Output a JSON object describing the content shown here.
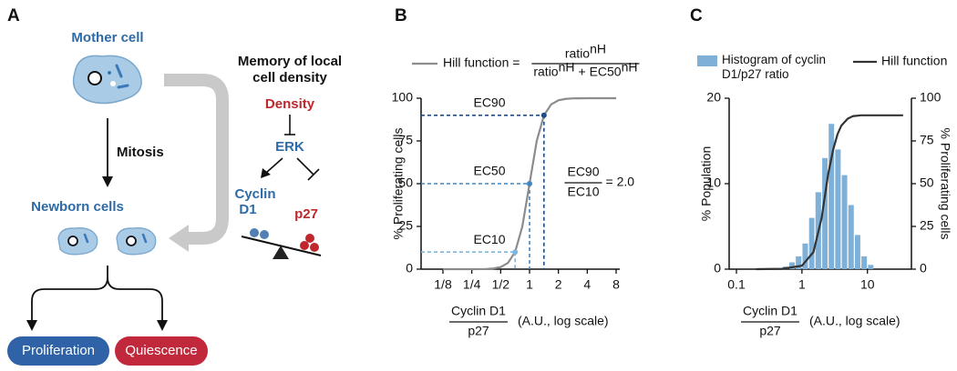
{
  "diagram": {
    "panel": "A",
    "mother_cell": "Mother cell",
    "mitosis": "Mitosis",
    "newborn_cells": "Newborn cells",
    "memory_title": [
      "Memory of local",
      "cell density"
    ],
    "density": "Density",
    "erk": "ERK",
    "cyclin_d1": [
      "Cyclin",
      "D1"
    ],
    "p27": "p27",
    "proliferation": "Proliferation",
    "quiescence": "Quiescence"
  },
  "chart_data": [
    {
      "type": "line",
      "panel": "B",
      "xscale": "log",
      "y_label": "% Proliferating cells",
      "x_label": {
        "numerator": "Cyclin D1",
        "denominator": "p27",
        "note": "(A.U., log scale)"
      },
      "formula": {
        "label": "Hill function =",
        "numerator": [
          "ratio",
          "nH"
        ],
        "denominator": [
          "ratio",
          "nH",
          "+ EC50",
          "nH"
        ]
      },
      "series": [
        {
          "name": "Hill function",
          "color": "#8c8c8c",
          "x": [
            0.125,
            0.177,
            0.25,
            0.354,
            0.42,
            0.5,
            0.595,
            0.707,
            0.841,
            1,
            1.189,
            1.414,
            1.682,
            2,
            2.378,
            2.828,
            4,
            5.657,
            8
          ],
          "values": [
            0,
            0,
            0,
            0.1,
            0.4,
            1.2,
            3.6,
            10,
            25,
            50,
            75,
            90,
            96.4,
            98.8,
            99.6,
            99.9,
            100,
            100,
            100
          ]
        }
      ],
      "annotations": [
        {
          "label": "EC10",
          "x": 0.707,
          "y": 10,
          "color": "#7fb6e0"
        },
        {
          "label": "EC50",
          "x": 1,
          "y": 50,
          "color": "#3f86c4"
        },
        {
          "label": "EC90",
          "x": 1.414,
          "y": 90,
          "color": "#1f4e8c"
        }
      ],
      "ratio_note": {
        "numerator": "EC90",
        "denominator": "EC10",
        "text": "= 2.0"
      },
      "xlim": [
        0.125,
        8
      ],
      "xticks": [
        {
          "value": 0.125,
          "label": "1/8"
        },
        {
          "value": 0.25,
          "label": "1/4"
        },
        {
          "value": 0.5,
          "label": "1/2"
        },
        1,
        2,
        4,
        8
      ],
      "ylim": [
        0,
        100
      ],
      "yticks": [
        0,
        25,
        50,
        75,
        100
      ]
    },
    {
      "type": "histogram",
      "panel": "C",
      "xscale": "log",
      "y_label": "% Population",
      "y2_label": "% Proliferating cells",
      "x_label": {
        "numerator": "Cyclin D1",
        "denominator": "p27",
        "note": "(A.U., log scale)"
      },
      "name": "Histogram of cyclin D1/p27 ratio",
      "color": "#7fb0d8",
      "bins": [
        0.5,
        0.63,
        0.79,
        1,
        1.26,
        1.58,
        2,
        2.51,
        3.16,
        3.98,
        5.01,
        6.31,
        7.94,
        10,
        12.6
      ],
      "values": [
        0.3,
        0.8,
        1.5,
        3,
        6,
        9,
        13,
        17,
        14,
        11,
        7.5,
        4,
        1.5,
        0.5
      ],
      "series": [
        {
          "name": "Hill function",
          "color": "#333333",
          "axis": "y2",
          "x": [
            0.2,
            0.5,
            1,
            1.5,
            2,
            2.5,
            3,
            3.5,
            4,
            5,
            6,
            8,
            10,
            20,
            35
          ],
          "values": [
            0,
            0.2,
            2,
            10,
            30,
            55,
            70,
            79,
            84,
            88,
            89.5,
            90,
            90,
            90,
            90
          ]
        }
      ],
      "xlim": [
        0.1,
        40
      ],
      "xticks": [
        0.1,
        1,
        10
      ],
      "ylim": [
        0,
        20
      ],
      "yticks": [
        0,
        10,
        20
      ],
      "y2lim": [
        0,
        100
      ],
      "y2ticks": [
        0,
        25,
        50,
        75,
        100
      ]
    }
  ]
}
